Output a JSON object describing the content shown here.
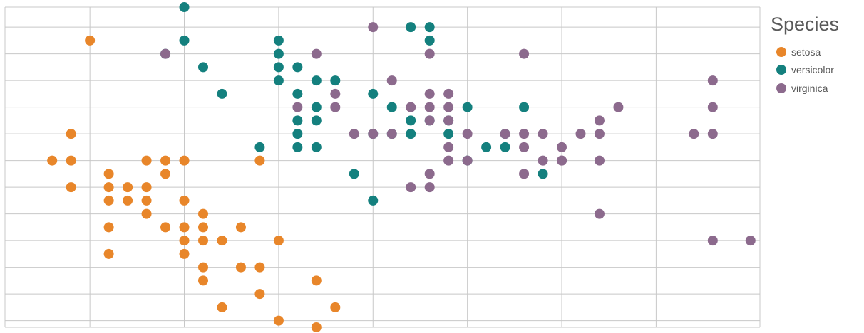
{
  "colors": {
    "setosa": "#E8862A",
    "versicolor": "#14807E",
    "virginica": "#8C6A8D",
    "grid": "#C8C8C8"
  },
  "legend": {
    "title": "Species",
    "items": [
      {
        "label": "setosa",
        "color": "#E8862A"
      },
      {
        "label": "versicolor",
        "color": "#14807E"
      },
      {
        "label": "virginica",
        "color": "#8C6A8D"
      }
    ]
  },
  "chart_data": {
    "type": "scatter",
    "title": "",
    "xlabel": "",
    "ylabel": "",
    "xlim": [
      4.05,
      8.05
    ],
    "ylim": [
      1.95,
      4.35
    ],
    "x_gridlines": [
      4.5,
      5.0,
      5.5,
      6.0,
      6.5,
      7.0,
      7.5
    ],
    "y_gridlines": [
      2.0,
      2.2,
      2.4,
      2.6,
      2.8,
      3.0,
      3.2,
      3.4,
      3.6,
      3.8,
      4.0,
      4.2
    ],
    "grid": true,
    "legend_position": "top-right",
    "series": [
      {
        "name": "setosa",
        "color": "#E8862A",
        "points": [
          [
            4.5,
            4.1
          ],
          [
            4.4,
            3.4
          ],
          [
            4.3,
            3.2
          ],
          [
            4.4,
            3.2
          ],
          [
            4.4,
            3.0
          ],
          [
            4.6,
            3.1
          ],
          [
            4.6,
            3.0
          ],
          [
            4.7,
            3.0
          ],
          [
            4.8,
            3.0
          ],
          [
            4.9,
            3.1
          ],
          [
            4.8,
            3.2
          ],
          [
            4.9,
            3.2
          ],
          [
            5.0,
            3.2
          ],
          [
            5.4,
            3.2
          ],
          [
            4.6,
            2.9
          ],
          [
            4.7,
            2.9
          ],
          [
            4.8,
            2.9
          ],
          [
            4.8,
            2.8
          ],
          [
            5.0,
            2.9
          ],
          [
            5.1,
            2.8
          ],
          [
            4.6,
            2.7
          ],
          [
            5.0,
            2.7
          ],
          [
            4.9,
            2.7
          ],
          [
            5.1,
            2.7
          ],
          [
            5.3,
            2.7
          ],
          [
            5.0,
            2.6
          ],
          [
            5.1,
            2.6
          ],
          [
            5.2,
            2.6
          ],
          [
            5.5,
            2.6
          ],
          [
            4.6,
            2.5
          ],
          [
            5.0,
            2.5
          ],
          [
            5.1,
            2.4
          ],
          [
            5.3,
            2.4
          ],
          [
            5.4,
            2.4
          ],
          [
            5.1,
            2.3
          ],
          [
            5.7,
            2.3
          ],
          [
            5.4,
            2.2
          ],
          [
            5.8,
            2.1
          ],
          [
            5.2,
            2.1
          ],
          [
            5.5,
            2.0
          ],
          [
            5.7,
            1.95
          ]
        ]
      },
      {
        "name": "versicolor",
        "color": "#14807E",
        "points": [
          [
            5.0,
            4.35
          ],
          [
            5.0,
            4.1
          ],
          [
            4.9,
            4.0
          ],
          [
            5.1,
            3.9
          ],
          [
            5.2,
            3.7
          ],
          [
            5.5,
            4.1
          ],
          [
            5.5,
            4.0
          ],
          [
            5.5,
            3.9
          ],
          [
            5.5,
            3.8
          ],
          [
            5.6,
            3.9
          ],
          [
            5.7,
            3.8
          ],
          [
            5.8,
            3.8
          ],
          [
            5.6,
            3.7
          ],
          [
            6.0,
            3.7
          ],
          [
            5.7,
            3.6
          ],
          [
            6.1,
            3.6
          ],
          [
            5.6,
            3.5
          ],
          [
            5.7,
            3.5
          ],
          [
            6.2,
            3.5
          ],
          [
            6.3,
            3.5
          ],
          [
            6.4,
            3.5
          ],
          [
            6.5,
            3.6
          ],
          [
            6.8,
            3.6
          ],
          [
            5.6,
            3.4
          ],
          [
            6.0,
            3.4
          ],
          [
            6.1,
            3.4
          ],
          [
            6.2,
            3.4
          ],
          [
            6.4,
            3.4
          ],
          [
            6.7,
            3.4
          ],
          [
            5.4,
            3.3
          ],
          [
            5.6,
            3.3
          ],
          [
            5.7,
            3.3
          ],
          [
            6.6,
            3.3
          ],
          [
            6.7,
            3.3
          ],
          [
            6.5,
            3.2
          ],
          [
            6.9,
            3.1
          ],
          [
            5.9,
            3.1
          ],
          [
            6.0,
            2.9
          ],
          [
            6.2,
            4.2
          ],
          [
            6.3,
            4.2
          ],
          [
            6.3,
            4.1
          ]
        ]
      },
      {
        "name": "virginica",
        "color": "#8C6A8D",
        "points": [
          [
            6.0,
            4.2
          ],
          [
            6.3,
            4.0
          ],
          [
            4.9,
            4.0
          ],
          [
            5.7,
            4.0
          ],
          [
            6.8,
            4.0
          ],
          [
            6.1,
            3.8
          ],
          [
            7.8,
            3.8
          ],
          [
            5.8,
            3.7
          ],
          [
            6.3,
            3.7
          ],
          [
            6.4,
            3.7
          ],
          [
            5.6,
            3.6
          ],
          [
            5.8,
            3.6
          ],
          [
            6.2,
            3.6
          ],
          [
            6.3,
            3.6
          ],
          [
            6.4,
            3.6
          ],
          [
            7.3,
            3.6
          ],
          [
            7.8,
            3.6
          ],
          [
            7.2,
            3.5
          ],
          [
            6.3,
            3.5
          ],
          [
            6.4,
            3.5
          ],
          [
            5.9,
            3.4
          ],
          [
            6.0,
            3.4
          ],
          [
            6.1,
            3.4
          ],
          [
            6.5,
            3.4
          ],
          [
            6.7,
            3.4
          ],
          [
            6.8,
            3.4
          ],
          [
            6.9,
            3.4
          ],
          [
            7.1,
            3.4
          ],
          [
            7.2,
            3.4
          ],
          [
            7.7,
            3.4
          ],
          [
            7.8,
            3.4
          ],
          [
            6.4,
            3.3
          ],
          [
            6.8,
            3.3
          ],
          [
            7.0,
            3.3
          ],
          [
            7.0,
            3.2
          ],
          [
            6.4,
            3.2
          ],
          [
            6.5,
            3.2
          ],
          [
            6.9,
            3.2
          ],
          [
            7.0,
            3.2
          ],
          [
            7.2,
            3.2
          ],
          [
            6.3,
            3.1
          ],
          [
            6.8,
            3.1
          ],
          [
            6.2,
            3.0
          ],
          [
            6.3,
            3.0
          ],
          [
            7.2,
            2.8
          ],
          [
            7.8,
            2.6
          ],
          [
            8.0,
            2.6
          ]
        ]
      }
    ]
  }
}
